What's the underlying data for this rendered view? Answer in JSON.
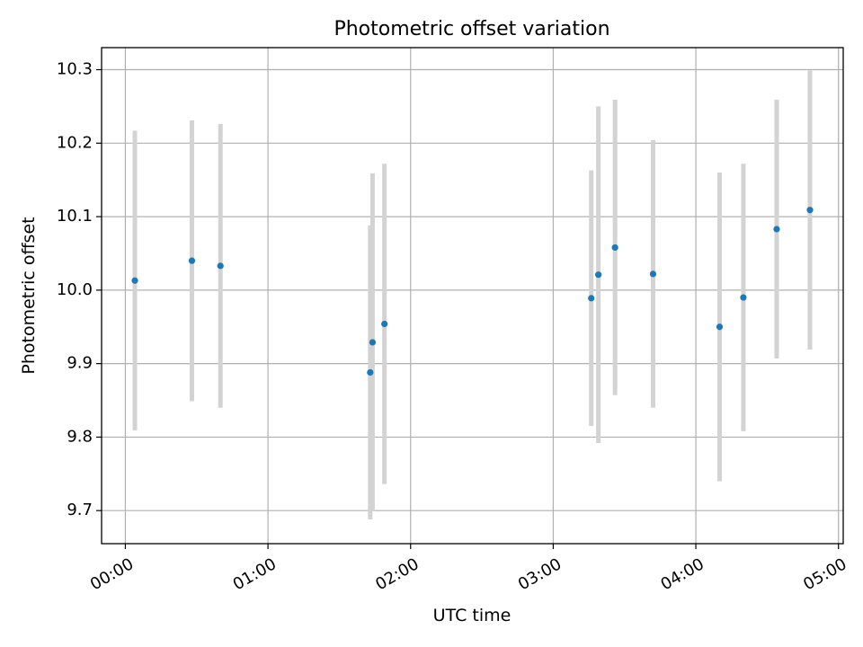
{
  "chart_data": {
    "type": "scatter",
    "title": "Photometric offset variation",
    "xlabel": "UTC time",
    "ylabel": "Photometric offset",
    "xlim": [
      "23:50",
      "05:02"
    ],
    "ylim": [
      9.655,
      10.33
    ],
    "grid": true,
    "x_ticks": [
      "00:00",
      "01:00",
      "02:00",
      "03:00",
      "04:00",
      "05:00"
    ],
    "y_ticks": [
      9.7,
      9.8,
      9.9,
      10.0,
      10.1,
      10.2,
      10.3
    ],
    "y_tick_labels": [
      "9.7",
      "9.8",
      "9.9",
      "10.0",
      "10.1",
      "10.2",
      "10.3"
    ],
    "marker_color": "#1f77b4",
    "errorbar_color": "#d3d3d3",
    "points": [
      {
        "x": "00:04",
        "y": 10.013,
        "err": 0.204
      },
      {
        "x": "00:28",
        "y": 10.04,
        "err": 0.191
      },
      {
        "x": "00:40",
        "y": 10.033,
        "err": 0.193
      },
      {
        "x": "01:43",
        "y": 9.888,
        "err": 0.2
      },
      {
        "x": "01:44",
        "y": 9.929,
        "err": 0.23
      },
      {
        "x": "01:49",
        "y": 9.954,
        "err": 0.218
      },
      {
        "x": "03:16",
        "y": 9.989,
        "err": 0.174
      },
      {
        "x": "03:19",
        "y": 10.021,
        "err": 0.229
      },
      {
        "x": "03:26",
        "y": 10.058,
        "err": 0.201
      },
      {
        "x": "03:42",
        "y": 10.022,
        "err": 0.182
      },
      {
        "x": "04:10",
        "y": 9.95,
        "err": 0.21
      },
      {
        "x": "04:20",
        "y": 9.99,
        "err": 0.182
      },
      {
        "x": "04:34",
        "y": 10.083,
        "err": 0.176
      },
      {
        "x": "04:48",
        "y": 10.109,
        "err": 0.19
      }
    ]
  }
}
